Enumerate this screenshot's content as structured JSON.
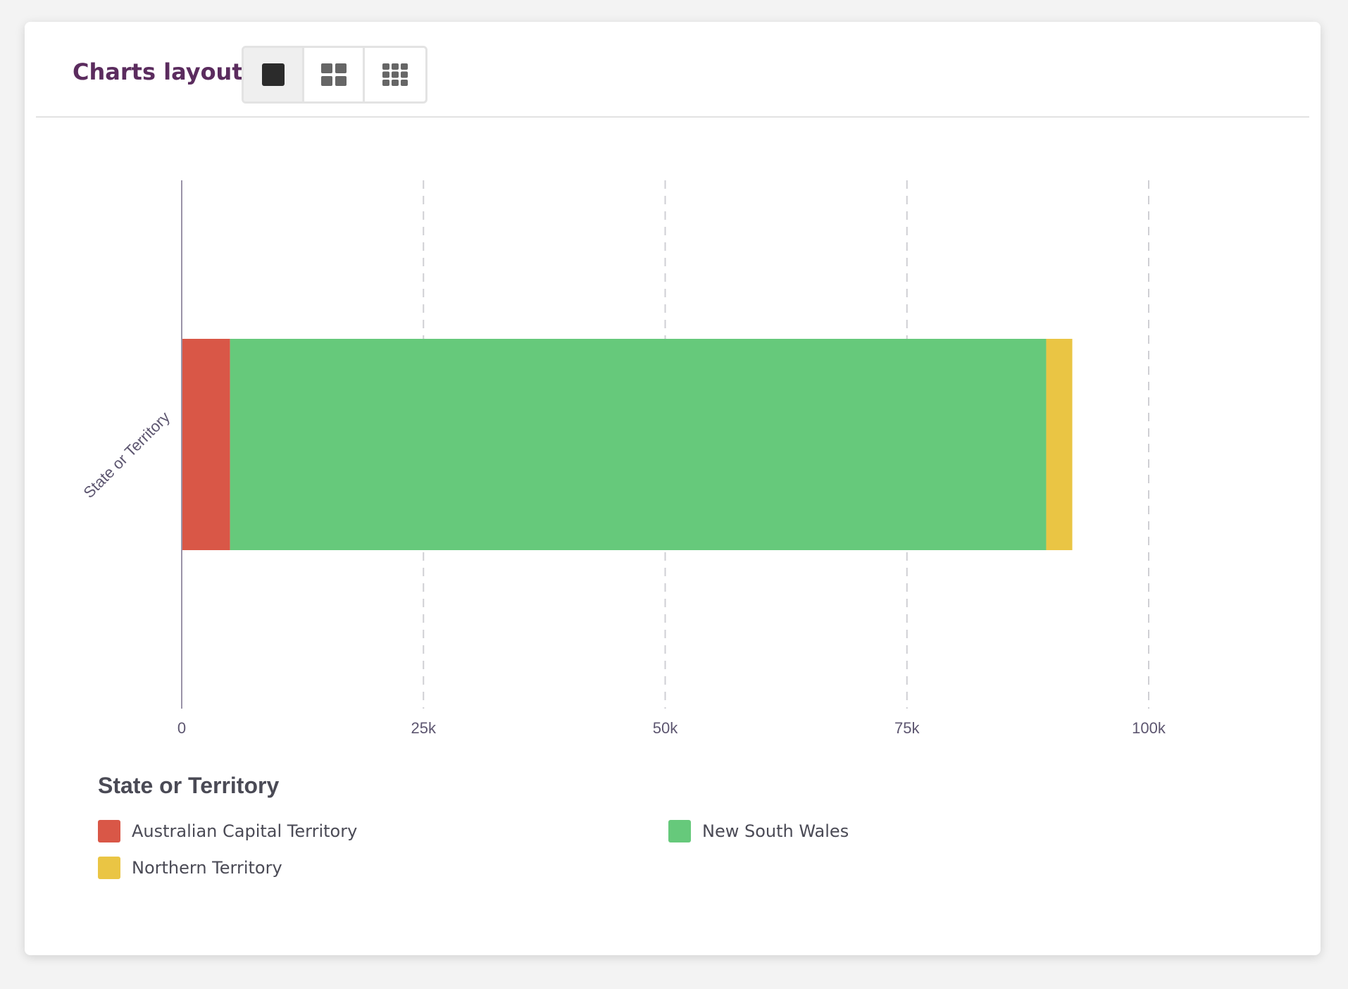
{
  "toolbar": {
    "label": "Charts layout:",
    "buttons": [
      {
        "name": "layout-1x1",
        "icon": "single-square-icon",
        "active": true
      },
      {
        "name": "layout-2x2",
        "icon": "grid-2x2-icon",
        "active": false
      },
      {
        "name": "layout-3x3",
        "icon": "grid-3x3-icon",
        "active": false
      }
    ]
  },
  "chart_data": {
    "type": "bar",
    "orientation": "horizontal",
    "stacked": true,
    "ylabel": "State or Territory",
    "xlim": [
      0,
      100000
    ],
    "xticks": [
      0,
      25000,
      50000,
      75000,
      100000
    ],
    "xtick_labels": [
      "0",
      "25k",
      "50k",
      "75k",
      "100k"
    ],
    "grid": "vertical-dashed",
    "series": [
      {
        "name": "Australian Capital Territory",
        "value": 5000,
        "color": "#d95747"
      },
      {
        "name": "New South Wales",
        "value": 84400,
        "color": "#66c97b"
      },
      {
        "name": "Northern Territory",
        "value": 2700,
        "color": "#eac544"
      }
    ]
  },
  "legend": {
    "title": "State or Territory",
    "items": [
      {
        "label": "Australian Capital Territory",
        "color": "#d95747"
      },
      {
        "label": "New South Wales",
        "color": "#66c97b"
      },
      {
        "label": "Northern Territory",
        "color": "#eac544"
      }
    ]
  }
}
